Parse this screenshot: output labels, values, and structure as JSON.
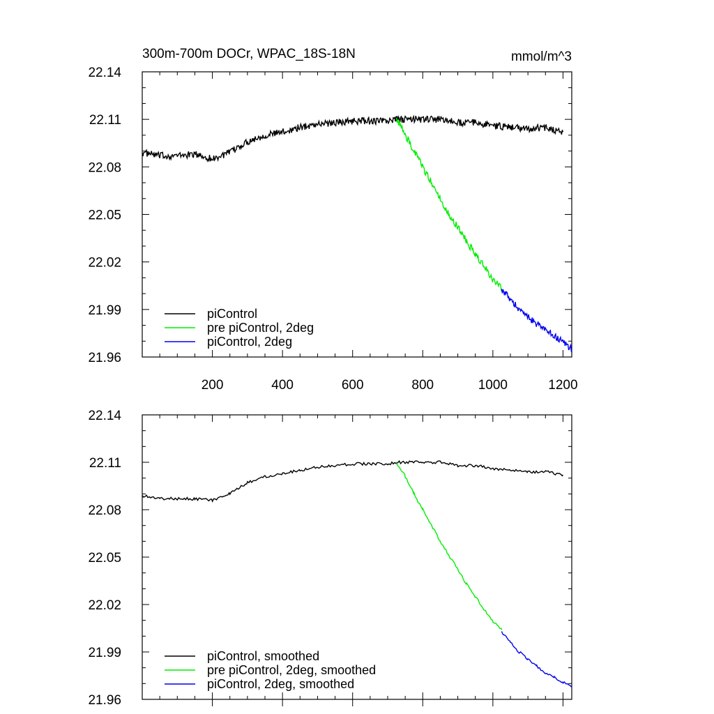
{
  "chart_data": [
    {
      "type": "line",
      "title": "300m-700m DOCr, WPAC_18S-18N",
      "units": "mmol/m^3",
      "xlim": [
        0,
        1225
      ],
      "ylim": [
        21.96,
        22.14
      ],
      "x_ticks": [
        200,
        400,
        600,
        800,
        1000,
        1200
      ],
      "y_ticks": [
        "22.14",
        "22.11",
        "22.08",
        "22.05",
        "22.02",
        "21.99",
        "21.96"
      ],
      "grid": false,
      "legend_position": "bottom-left",
      "smoothed": false,
      "series": [
        {
          "name": "piControl",
          "color": "#000000",
          "points": [
            [
              0,
              22.089
            ],
            [
              50,
              22.087
            ],
            [
              100,
              22.087
            ],
            [
              150,
              22.088
            ],
            [
              200,
              22.085
            ],
            [
              250,
              22.089
            ],
            [
              300,
              22.096
            ],
            [
              350,
              22.1
            ],
            [
              400,
              22.102
            ],
            [
              450,
              22.105
            ],
            [
              500,
              22.107
            ],
            [
              550,
              22.108
            ],
            [
              600,
              22.109
            ],
            [
              650,
              22.109
            ],
            [
              700,
              22.109
            ],
            [
              725,
              22.11
            ],
            [
              750,
              22.11
            ],
            [
              800,
              22.11
            ],
            [
              850,
              22.11
            ],
            [
              900,
              22.108
            ],
            [
              950,
              22.108
            ],
            [
              1000,
              22.106
            ],
            [
              1050,
              22.105
            ],
            [
              1100,
              22.104
            ],
            [
              1150,
              22.105
            ],
            [
              1200,
              22.102
            ]
          ]
        },
        {
          "name": "pre piControl, 2deg",
          "color": "#00ee00",
          "points": [
            [
              725,
              22.111
            ],
            [
              750,
              22.1
            ],
            [
              775,
              22.09
            ],
            [
              800,
              22.08
            ],
            [
              825,
              22.07
            ],
            [
              850,
              22.06
            ],
            [
              875,
              22.05
            ],
            [
              900,
              22.042
            ],
            [
              925,
              22.033
            ],
            [
              950,
              22.025
            ],
            [
              975,
              22.017
            ],
            [
              1000,
              22.009
            ],
            [
              1025,
              22.003
            ]
          ]
        },
        {
          "name": "piControl, 2deg",
          "color": "#0000ee",
          "points": [
            [
              1025,
              22.003
            ],
            [
              1050,
              21.996
            ],
            [
              1075,
              21.99
            ],
            [
              1100,
              21.985
            ],
            [
              1125,
              21.981
            ],
            [
              1150,
              21.977
            ],
            [
              1175,
              21.973
            ],
            [
              1200,
              21.97
            ],
            [
              1225,
              21.965
            ]
          ]
        }
      ]
    },
    {
      "type": "line",
      "xlim": [
        0,
        1225
      ],
      "ylim": [
        21.96,
        22.14
      ],
      "y_ticks": [
        "22.14",
        "22.11",
        "22.08",
        "22.05",
        "22.02",
        "21.99",
        "21.96"
      ],
      "grid": false,
      "legend_position": "bottom-left",
      "smoothed": true,
      "series": [
        {
          "name": "piControl, smoothed",
          "color": "#000000",
          "points": [
            [
              0,
              22.089
            ],
            [
              50,
              22.087
            ],
            [
              100,
              22.087
            ],
            [
              150,
              22.087
            ],
            [
              200,
              22.086
            ],
            [
              250,
              22.09
            ],
            [
              300,
              22.097
            ],
            [
              350,
              22.101
            ],
            [
              400,
              22.103
            ],
            [
              450,
              22.105
            ],
            [
              500,
              22.107
            ],
            [
              550,
              22.108
            ],
            [
              600,
              22.109
            ],
            [
              650,
              22.109
            ],
            [
              700,
              22.109
            ],
            [
              725,
              22.11
            ],
            [
              750,
              22.11
            ],
            [
              800,
              22.11
            ],
            [
              850,
              22.11
            ],
            [
              900,
              22.108
            ],
            [
              950,
              22.108
            ],
            [
              1000,
              22.106
            ],
            [
              1050,
              22.105
            ],
            [
              1100,
              22.104
            ],
            [
              1150,
              22.104
            ],
            [
              1200,
              22.102
            ]
          ]
        },
        {
          "name": "pre piControl, 2deg, smoothed",
          "color": "#00ee00",
          "points": [
            [
              725,
              22.11
            ],
            [
              750,
              22.101
            ],
            [
              775,
              22.09
            ],
            [
              800,
              22.08
            ],
            [
              825,
              22.07
            ],
            [
              850,
              22.06
            ],
            [
              875,
              22.051
            ],
            [
              900,
              22.042
            ],
            [
              925,
              22.033
            ],
            [
              950,
              22.025
            ],
            [
              975,
              22.017
            ],
            [
              1000,
              22.009
            ],
            [
              1025,
              22.004
            ]
          ]
        },
        {
          "name": "piControl, 2deg, smoothed",
          "color": "#0000ee",
          "points": [
            [
              1025,
              22.003
            ],
            [
              1050,
              21.996
            ],
            [
              1075,
              21.99
            ],
            [
              1100,
              21.985
            ],
            [
              1125,
              21.981
            ],
            [
              1150,
              21.977
            ],
            [
              1175,
              21.974
            ],
            [
              1200,
              21.971
            ],
            [
              1225,
              21.968
            ]
          ]
        }
      ]
    }
  ]
}
